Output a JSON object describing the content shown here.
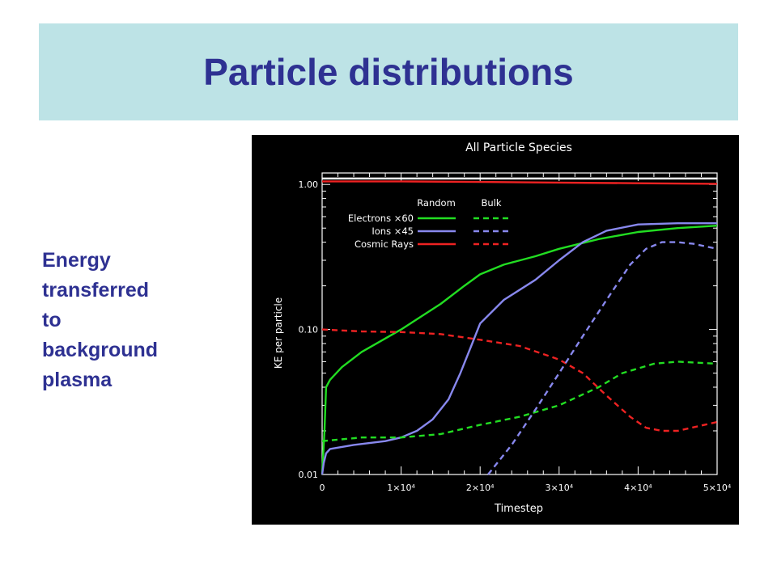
{
  "slide": {
    "title": "Particle distributions",
    "caption_lines": [
      "Energy",
      "transferred",
      "to",
      "background",
      "plasma"
    ]
  },
  "chart_data": {
    "type": "line",
    "title": "All Particle Species",
    "xlabel": "Timestep",
    "ylabel": "KE per particle",
    "x_scale": "linear",
    "y_scale": "log",
    "xlim": [
      0,
      50000
    ],
    "ylim": [
      0.01,
      1.2
    ],
    "x_ticks": [
      0,
      10000,
      20000,
      30000,
      40000,
      50000
    ],
    "x_tick_labels": [
      "0",
      "1×10⁴",
      "2×10⁴",
      "3×10⁴",
      "4×10⁴",
      "5×10⁴"
    ],
    "y_ticks": [
      0.01,
      0.1,
      1.0
    ],
    "y_tick_labels": [
      "0.01",
      "0.10",
      "1.00"
    ],
    "legend": {
      "placement": "top-left",
      "column_headers": [
        "Random",
        "Bulk"
      ],
      "rows": [
        {
          "label": "Electrons ×60",
          "color": "#22dd22"
        },
        {
          "label": "Ions ×45",
          "color": "#8888ee"
        },
        {
          "label": "Cosmic Rays",
          "color": "#ee2222"
        }
      ]
    },
    "series": [
      {
        "name": "Total",
        "color": "#ffffff",
        "dash": false,
        "x": [
          0,
          50000
        ],
        "y": [
          1.1,
          1.1
        ]
      },
      {
        "name": "Cosmic Rays Random",
        "color": "#ee2222",
        "dash": false,
        "x": [
          0,
          10000,
          20000,
          30000,
          40000,
          50000
        ],
        "y": [
          1.05,
          1.05,
          1.04,
          1.03,
          1.02,
          1.01
        ]
      },
      {
        "name": "Electrons Random",
        "color": "#22dd22",
        "dash": false,
        "x": [
          0,
          300,
          500,
          1000,
          2500,
          5000,
          10000,
          15000,
          18000,
          20000,
          23000,
          27000,
          30000,
          35000,
          40000,
          45000,
          50000
        ],
        "y": [
          0.01,
          0.02,
          0.04,
          0.045,
          0.055,
          0.07,
          0.1,
          0.15,
          0.2,
          0.24,
          0.28,
          0.32,
          0.36,
          0.42,
          0.47,
          0.5,
          0.52
        ]
      },
      {
        "name": "Ions Random",
        "color": "#8888ee",
        "dash": false,
        "x": [
          0,
          200,
          500,
          1000,
          4000,
          8000,
          10000,
          12000,
          14000,
          16000,
          17500,
          19000,
          20000,
          23000,
          27000,
          30000,
          33000,
          36000,
          40000,
          45000,
          50000
        ],
        "y": [
          0.01,
          0.012,
          0.014,
          0.015,
          0.016,
          0.017,
          0.018,
          0.02,
          0.024,
          0.033,
          0.05,
          0.08,
          0.11,
          0.16,
          0.22,
          0.3,
          0.4,
          0.48,
          0.53,
          0.54,
          0.54
        ]
      },
      {
        "name": "Cosmic Rays Bulk",
        "color": "#ee2222",
        "dash": true,
        "x": [
          0,
          5000,
          10000,
          15000,
          20000,
          25000,
          30000,
          33000,
          36000,
          39000,
          41000,
          43000,
          45000,
          50000
        ],
        "y": [
          0.1,
          0.097,
          0.096,
          0.093,
          0.085,
          0.077,
          0.062,
          0.05,
          0.035,
          0.025,
          0.021,
          0.02,
          0.02,
          0.023
        ]
      },
      {
        "name": "Electrons Bulk",
        "color": "#22dd22",
        "dash": true,
        "x": [
          0,
          5000,
          10000,
          15000,
          20000,
          25000,
          30000,
          35000,
          38000,
          42000,
          45000,
          50000
        ],
        "y": [
          0.017,
          0.018,
          0.018,
          0.019,
          0.022,
          0.025,
          0.03,
          0.04,
          0.05,
          0.058,
          0.06,
          0.058
        ]
      },
      {
        "name": "Ions Bulk",
        "color": "#8888ee",
        "dash": true,
        "x": [
          21000,
          24000,
          27000,
          30000,
          33000,
          36000,
          39000,
          41000,
          43000,
          45000,
          47000,
          50000
        ],
        "y": [
          0.01,
          0.016,
          0.028,
          0.05,
          0.09,
          0.16,
          0.28,
          0.36,
          0.4,
          0.4,
          0.39,
          0.36
        ]
      }
    ]
  }
}
